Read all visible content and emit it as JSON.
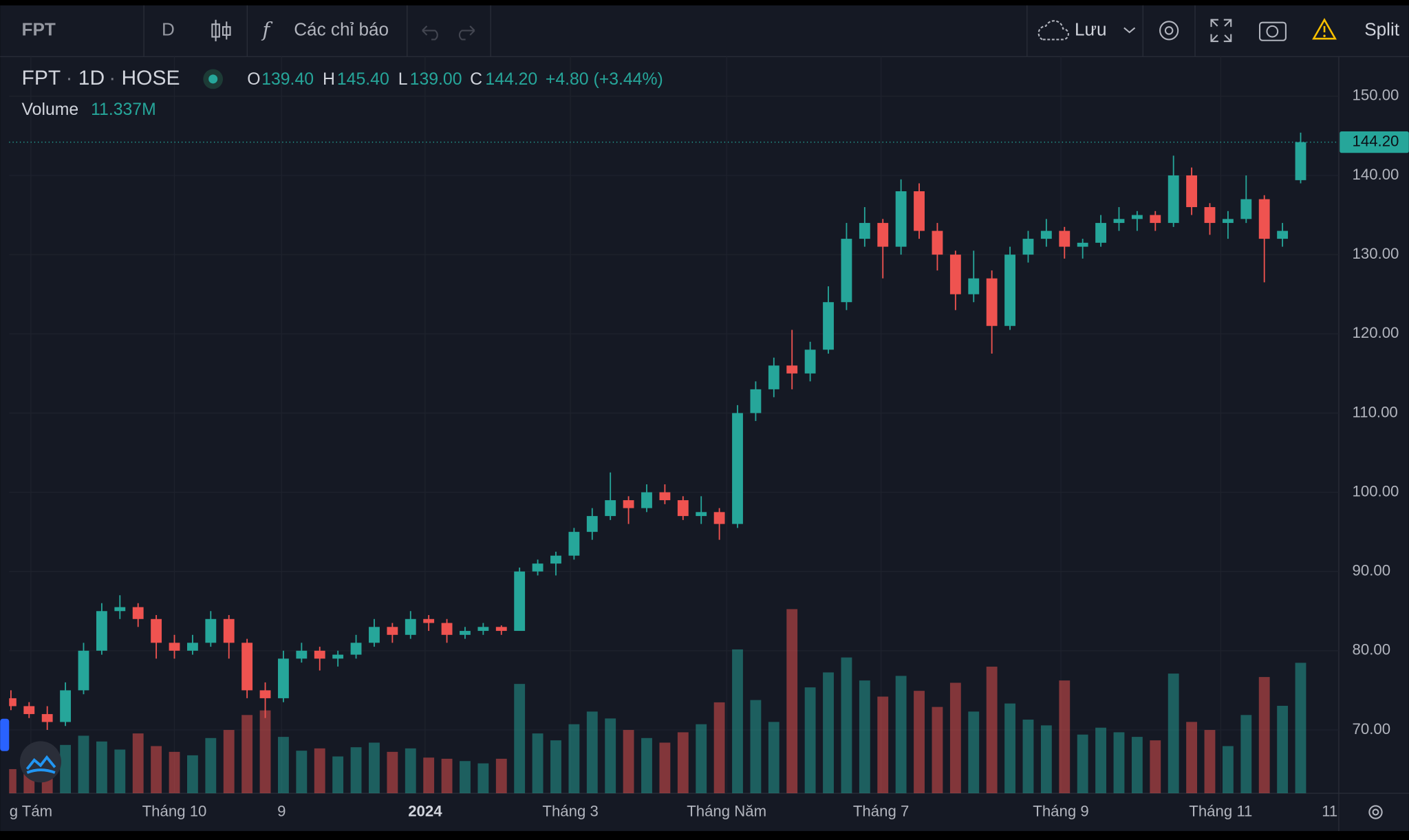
{
  "toolbar": {
    "symbol": "FPT",
    "interval": "D",
    "indicators": "Các chỉ báo",
    "save": "Lưu",
    "split": "Split"
  },
  "header": {
    "symbol": "FPT",
    "separator": "·",
    "interval": "1D",
    "exchange": "HOSE",
    "open_label": "O",
    "open": "139.40",
    "high_label": "H",
    "high": "145.40",
    "low_label": "L",
    "low": "139.00",
    "close_label": "C",
    "close": "144.20",
    "change": "+4.80 (+3.44%)",
    "volume_label": "Volume",
    "volume": "11.337M"
  },
  "chart_data": {
    "type": "candlestick",
    "up_color": "#26a69a",
    "down_color": "#ef5350",
    "open": [
      74,
      73,
      72,
      71,
      75,
      80,
      85,
      85.5,
      84,
      81,
      80,
      81,
      84,
      81,
      75,
      74,
      79,
      80,
      79,
      79.5,
      81,
      83,
      82,
      84,
      83.5,
      82,
      82.5,
      83,
      82.5,
      90,
      91,
      92,
      95,
      97,
      99,
      98,
      100,
      99,
      97,
      97.5,
      96,
      110,
      113,
      116,
      115,
      118,
      124,
      132,
      134,
      131,
      138,
      133,
      130,
      125,
      127,
      121,
      130,
      132,
      133,
      131,
      131.5,
      134,
      134.5,
      135,
      134,
      140,
      136,
      134,
      134.5,
      137,
      132,
      139.4
    ],
    "high": [
      75,
      73.5,
      73,
      76,
      81,
      86,
      87,
      86,
      84.5,
      82,
      82,
      85,
      84.5,
      81.5,
      76,
      80,
      81,
      80.5,
      80,
      82,
      84,
      83.5,
      85,
      84.5,
      84,
      83,
      83.5,
      83.2,
      90.5,
      91.5,
      92.5,
      95.5,
      98,
      102.5,
      99.5,
      101,
      101,
      99.5,
      99.5,
      98,
      111,
      114,
      117,
      120.5,
      119,
      126,
      134,
      136,
      134.5,
      139.5,
      139,
      134,
      130.5,
      130.5,
      128,
      131,
      133,
      134.5,
      133.5,
      132,
      135,
      136,
      135.5,
      135.5,
      142.5,
      141,
      136.5,
      135.5,
      140,
      137.5,
      134,
      145.4
    ],
    "low": [
      72.5,
      71.5,
      70,
      70.5,
      74.5,
      79.5,
      84,
      83,
      79,
      79,
      79.5,
      80.5,
      79,
      74,
      71.5,
      73.5,
      78.5,
      77.5,
      78,
      79,
      80.5,
      81,
      81.5,
      82.5,
      81,
      81.5,
      82,
      82,
      82.5,
      89.5,
      89.5,
      91.5,
      94,
      96.5,
      96,
      97.5,
      98.5,
      96.5,
      96,
      94,
      95.5,
      109,
      112,
      113,
      114,
      117.5,
      123,
      131,
      127,
      130,
      132,
      128,
      123,
      124,
      117.5,
      120.5,
      129,
      131,
      129.5,
      129.5,
      131,
      133,
      133,
      133,
      133.5,
      135,
      132.5,
      132,
      134,
      126.5,
      131,
      139
    ],
    "close": [
      73,
      72,
      71,
      75,
      80,
      85,
      85.5,
      84,
      81,
      80,
      81,
      84,
      81,
      75,
      74,
      79,
      80,
      79,
      79.5,
      81,
      83,
      82,
      84,
      83.5,
      82,
      82.5,
      83,
      82.5,
      90,
      91,
      92,
      95,
      97,
      99,
      98,
      100,
      99,
      97,
      97.5,
      96,
      110,
      113,
      116,
      115,
      118,
      124,
      132,
      134,
      131,
      138,
      133,
      130,
      125,
      127,
      121,
      130,
      132,
      133,
      131,
      131.5,
      134,
      134.5,
      135,
      134,
      140,
      136,
      134,
      134.5,
      137,
      132,
      133,
      144.2
    ],
    "volume": [
      2.1,
      3.5,
      2.8,
      4.2,
      5.0,
      4.5,
      3.8,
      5.2,
      4.1,
      3.6,
      3.3,
      4.8,
      5.5,
      6.8,
      7.2,
      4.9,
      3.7,
      3.9,
      3.2,
      4.0,
      4.4,
      3.6,
      3.9,
      3.1,
      3.0,
      2.8,
      2.6,
      3.0,
      9.5,
      5.2,
      4.6,
      6.0,
      7.1,
      6.5,
      5.5,
      4.8,
      4.4,
      5.3,
      6.0,
      7.9,
      12.5,
      8.1,
      6.2,
      16.0,
      9.2,
      10.5,
      11.8,
      9.8,
      8.4,
      10.2,
      8.9,
      7.5,
      9.6,
      7.1,
      11.0,
      7.8,
      6.4,
      5.9,
      9.8,
      5.1,
      5.7,
      5.3,
      4.9,
      4.6,
      10.4,
      6.2,
      5.5,
      4.1,
      6.8,
      10.1,
      7.6,
      11.337
    ],
    "xlim": [
      -0.1,
      73.1
    ],
    "xticks": [
      {
        "value": 1.1,
        "label": "g Tám"
      },
      {
        "value": 9.0,
        "label": "Tháng 10"
      },
      {
        "value": 14.9,
        "label": "9"
      },
      {
        "value": 22.8,
        "label": "2024"
      },
      {
        "value": 30.8,
        "label": "Tháng 3"
      },
      {
        "value": 39.4,
        "label": "Tháng Năm"
      },
      {
        "value": 47.9,
        "label": "Tháng 7"
      },
      {
        "value": 57.8,
        "label": "Tháng 9"
      },
      {
        "value": 66.6,
        "label": "Tháng 11"
      },
      {
        "value": 72.6,
        "label": "11"
      }
    ],
    "ylim": [
      62,
      155
    ],
    "yticks": [
      {
        "value": 70,
        "label": "70.00"
      },
      {
        "value": 80,
        "label": "80.00"
      },
      {
        "value": 90,
        "label": "90.00"
      },
      {
        "value": 100,
        "label": "100.00"
      },
      {
        "value": 110,
        "label": "110.00"
      },
      {
        "value": 120,
        "label": "120.00"
      },
      {
        "value": 130,
        "label": "130.00"
      },
      {
        "value": 140,
        "label": "140.00"
      },
      {
        "value": 150,
        "label": "150.00"
      }
    ],
    "grid": true,
    "last_price": {
      "value": 144.2,
      "label": "144.20"
    }
  }
}
